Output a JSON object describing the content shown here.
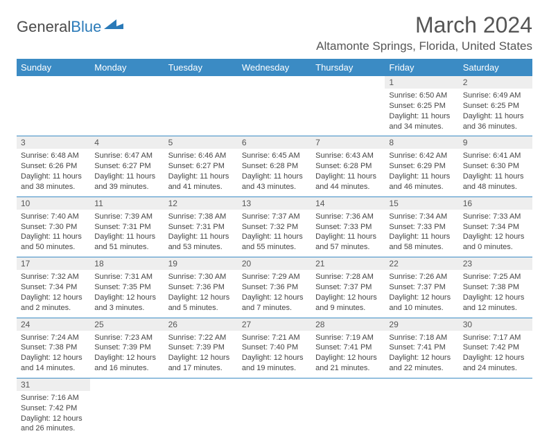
{
  "logo": {
    "text1": "General",
    "text2": "Blue"
  },
  "title": "March 2024",
  "location": "Altamonte Springs, Florida, United States",
  "colors": {
    "header_bg": "#3b8bc4",
    "header_text": "#ffffff",
    "daynum_bg": "#eeeeee",
    "rule": "#3b8bc4",
    "text": "#444444",
    "logo_blue": "#2a7ab8"
  },
  "weekdays": [
    "Sunday",
    "Monday",
    "Tuesday",
    "Wednesday",
    "Thursday",
    "Friday",
    "Saturday"
  ],
  "weeks": [
    [
      null,
      null,
      null,
      null,
      null,
      {
        "d": "1",
        "sr": "6:50 AM",
        "ss": "6:25 PM",
        "dl": "11 hours and 34 minutes."
      },
      {
        "d": "2",
        "sr": "6:49 AM",
        "ss": "6:25 PM",
        "dl": "11 hours and 36 minutes."
      }
    ],
    [
      {
        "d": "3",
        "sr": "6:48 AM",
        "ss": "6:26 PM",
        "dl": "11 hours and 38 minutes."
      },
      {
        "d": "4",
        "sr": "6:47 AM",
        "ss": "6:27 PM",
        "dl": "11 hours and 39 minutes."
      },
      {
        "d": "5",
        "sr": "6:46 AM",
        "ss": "6:27 PM",
        "dl": "11 hours and 41 minutes."
      },
      {
        "d": "6",
        "sr": "6:45 AM",
        "ss": "6:28 PM",
        "dl": "11 hours and 43 minutes."
      },
      {
        "d": "7",
        "sr": "6:43 AM",
        "ss": "6:28 PM",
        "dl": "11 hours and 44 minutes."
      },
      {
        "d": "8",
        "sr": "6:42 AM",
        "ss": "6:29 PM",
        "dl": "11 hours and 46 minutes."
      },
      {
        "d": "9",
        "sr": "6:41 AM",
        "ss": "6:30 PM",
        "dl": "11 hours and 48 minutes."
      }
    ],
    [
      {
        "d": "10",
        "sr": "7:40 AM",
        "ss": "7:30 PM",
        "dl": "11 hours and 50 minutes."
      },
      {
        "d": "11",
        "sr": "7:39 AM",
        "ss": "7:31 PM",
        "dl": "11 hours and 51 minutes."
      },
      {
        "d": "12",
        "sr": "7:38 AM",
        "ss": "7:31 PM",
        "dl": "11 hours and 53 minutes."
      },
      {
        "d": "13",
        "sr": "7:37 AM",
        "ss": "7:32 PM",
        "dl": "11 hours and 55 minutes."
      },
      {
        "d": "14",
        "sr": "7:36 AM",
        "ss": "7:33 PM",
        "dl": "11 hours and 57 minutes."
      },
      {
        "d": "15",
        "sr": "7:34 AM",
        "ss": "7:33 PM",
        "dl": "11 hours and 58 minutes."
      },
      {
        "d": "16",
        "sr": "7:33 AM",
        "ss": "7:34 PM",
        "dl": "12 hours and 0 minutes."
      }
    ],
    [
      {
        "d": "17",
        "sr": "7:32 AM",
        "ss": "7:34 PM",
        "dl": "12 hours and 2 minutes."
      },
      {
        "d": "18",
        "sr": "7:31 AM",
        "ss": "7:35 PM",
        "dl": "12 hours and 3 minutes."
      },
      {
        "d": "19",
        "sr": "7:30 AM",
        "ss": "7:36 PM",
        "dl": "12 hours and 5 minutes."
      },
      {
        "d": "20",
        "sr": "7:29 AM",
        "ss": "7:36 PM",
        "dl": "12 hours and 7 minutes."
      },
      {
        "d": "21",
        "sr": "7:28 AM",
        "ss": "7:37 PM",
        "dl": "12 hours and 9 minutes."
      },
      {
        "d": "22",
        "sr": "7:26 AM",
        "ss": "7:37 PM",
        "dl": "12 hours and 10 minutes."
      },
      {
        "d": "23",
        "sr": "7:25 AM",
        "ss": "7:38 PM",
        "dl": "12 hours and 12 minutes."
      }
    ],
    [
      {
        "d": "24",
        "sr": "7:24 AM",
        "ss": "7:38 PM",
        "dl": "12 hours and 14 minutes."
      },
      {
        "d": "25",
        "sr": "7:23 AM",
        "ss": "7:39 PM",
        "dl": "12 hours and 16 minutes."
      },
      {
        "d": "26",
        "sr": "7:22 AM",
        "ss": "7:39 PM",
        "dl": "12 hours and 17 minutes."
      },
      {
        "d": "27",
        "sr": "7:21 AM",
        "ss": "7:40 PM",
        "dl": "12 hours and 19 minutes."
      },
      {
        "d": "28",
        "sr": "7:19 AM",
        "ss": "7:41 PM",
        "dl": "12 hours and 21 minutes."
      },
      {
        "d": "29",
        "sr": "7:18 AM",
        "ss": "7:41 PM",
        "dl": "12 hours and 22 minutes."
      },
      {
        "d": "30",
        "sr": "7:17 AM",
        "ss": "7:42 PM",
        "dl": "12 hours and 24 minutes."
      }
    ],
    [
      {
        "d": "31",
        "sr": "7:16 AM",
        "ss": "7:42 PM",
        "dl": "12 hours and 26 minutes."
      },
      null,
      null,
      null,
      null,
      null,
      null
    ]
  ],
  "labels": {
    "sunrise": "Sunrise:",
    "sunset": "Sunset:",
    "daylight": "Daylight:"
  }
}
